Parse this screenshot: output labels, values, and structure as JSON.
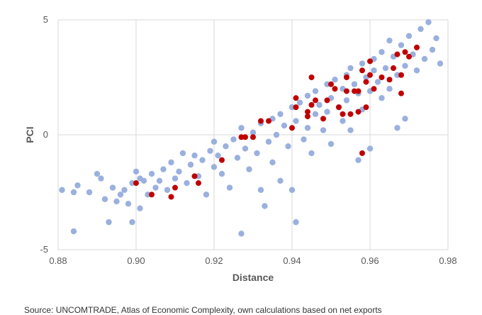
{
  "chart_data": {
    "type": "scatter",
    "title": "",
    "xlabel": "Distance",
    "ylabel": "PCI",
    "xlim": [
      0.88,
      0.98
    ],
    "ylim": [
      -5,
      5
    ],
    "x_ticks": [
      "0.88",
      "0.90",
      "0.92",
      "0.94",
      "0.96",
      "0.98"
    ],
    "y_ticks": [
      "5",
      "0",
      "-5"
    ],
    "grid": "vertical and horizontal major gridlines",
    "colors": {
      "main": "#9AB0DE",
      "highlight": "#C00000"
    },
    "series": [
      {
        "color": "#9AB0DE",
        "points": [
          [
            0.881,
            -2.4
          ],
          [
            0.884,
            -2.5
          ],
          [
            0.884,
            -4.2
          ],
          [
            0.885,
            -2.2
          ],
          [
            0.888,
            -2.5
          ],
          [
            0.89,
            -1.7
          ],
          [
            0.891,
            -1.9
          ],
          [
            0.892,
            -2.8
          ],
          [
            0.893,
            -3.8
          ],
          [
            0.894,
            -2.3
          ],
          [
            0.895,
            -2.9
          ],
          [
            0.896,
            -2.6
          ],
          [
            0.897,
            -2.4
          ],
          [
            0.898,
            -3.0
          ],
          [
            0.899,
            -3.8
          ],
          [
            0.899,
            -2.1
          ],
          [
            0.9,
            -1.6
          ],
          [
            0.901,
            -1.9
          ],
          [
            0.901,
            -3.2
          ],
          [
            0.902,
            -2.0
          ],
          [
            0.903,
            -2.6
          ],
          [
            0.904,
            -1.7
          ],
          [
            0.905,
            -2.3
          ],
          [
            0.906,
            -2.0
          ],
          [
            0.907,
            -1.5
          ],
          [
            0.908,
            -2.4
          ],
          [
            0.909,
            -1.2
          ],
          [
            0.91,
            -1.9
          ],
          [
            0.911,
            -1.6
          ],
          [
            0.912,
            -0.8
          ],
          [
            0.913,
            -2.1
          ],
          [
            0.914,
            -1.3
          ],
          [
            0.915,
            -0.9
          ],
          [
            0.916,
            -1.8
          ],
          [
            0.917,
            -1.1
          ],
          [
            0.918,
            -2.6
          ],
          [
            0.919,
            -0.7
          ],
          [
            0.92,
            -1.4
          ],
          [
            0.92,
            -0.3
          ],
          [
            0.921,
            -0.9
          ],
          [
            0.922,
            -1.7
          ],
          [
            0.923,
            -0.5
          ],
          [
            0.924,
            -2.3
          ],
          [
            0.925,
            -0.2
          ],
          [
            0.926,
            -1.0
          ],
          [
            0.927,
            0.3
          ],
          [
            0.927,
            -4.3
          ],
          [
            0.928,
            -0.6
          ],
          [
            0.929,
            -1.5
          ],
          [
            0.93,
            0.1
          ],
          [
            0.931,
            -0.8
          ],
          [
            0.932,
            0.5
          ],
          [
            0.932,
            -2.4
          ],
          [
            0.933,
            -3.1
          ],
          [
            0.934,
            -0.3
          ],
          [
            0.935,
            0.7
          ],
          [
            0.935,
            -1.2
          ],
          [
            0.936,
            0.0
          ],
          [
            0.937,
            0.9
          ],
          [
            0.937,
            -2.0
          ],
          [
            0.938,
            0.4
          ],
          [
            0.939,
            -0.5
          ],
          [
            0.94,
            1.2
          ],
          [
            0.94,
            -2.4
          ],
          [
            0.941,
            -3.8
          ],
          [
            0.941,
            0.6
          ],
          [
            0.942,
            1.4
          ],
          [
            0.943,
            -0.2
          ],
          [
            0.944,
            1.7
          ],
          [
            0.944,
            0.3
          ],
          [
            0.945,
            -0.8
          ],
          [
            0.946,
            1.9
          ],
          [
            0.946,
            0.9
          ],
          [
            0.947,
            1.3
          ],
          [
            0.948,
            0.2
          ],
          [
            0.949,
            2.2
          ],
          [
            0.949,
            1.0
          ],
          [
            0.95,
            1.6
          ],
          [
            0.95,
            -0.4
          ],
          [
            0.951,
            2.4
          ],
          [
            0.952,
            1.2
          ],
          [
            0.953,
            2.0
          ],
          [
            0.953,
            0.6
          ],
          [
            0.954,
            2.6
          ],
          [
            0.954,
            1.5
          ],
          [
            0.955,
            2.9
          ],
          [
            0.955,
            0.2
          ],
          [
            0.956,
            2.2
          ],
          [
            0.957,
            1.8
          ],
          [
            0.957,
            -1.1
          ],
          [
            0.958,
            3.1
          ],
          [
            0.958,
            1.1
          ],
          [
            0.959,
            2.5
          ],
          [
            0.96,
            1.9
          ],
          [
            0.96,
            -0.6
          ],
          [
            0.961,
            3.3
          ],
          [
            0.961,
            2.8
          ],
          [
            0.962,
            2.3
          ],
          [
            0.963,
            3.6
          ],
          [
            0.963,
            1.6
          ],
          [
            0.964,
            2.9
          ],
          [
            0.965,
            4.1
          ],
          [
            0.965,
            2.0
          ],
          [
            0.966,
            3.4
          ],
          [
            0.967,
            2.6
          ],
          [
            0.967,
            0.3
          ],
          [
            0.968,
            3.9
          ],
          [
            0.969,
            3.0
          ],
          [
            0.969,
            0.7
          ],
          [
            0.97,
            4.3
          ],
          [
            0.971,
            3.5
          ],
          [
            0.972,
            2.8
          ],
          [
            0.973,
            4.6
          ],
          [
            0.974,
            3.3
          ],
          [
            0.975,
            4.9
          ],
          [
            0.976,
            3.7
          ],
          [
            0.977,
            4.2
          ],
          [
            0.978,
            3.1
          ]
        ]
      },
      {
        "color": "#C00000",
        "points": [
          [
            0.9,
            -2.1
          ],
          [
            0.904,
            -2.6
          ],
          [
            0.909,
            -2.7
          ],
          [
            0.91,
            -2.3
          ],
          [
            0.915,
            -1.8
          ],
          [
            0.916,
            -2.1
          ],
          [
            0.922,
            -1.1
          ],
          [
            0.927,
            -0.1
          ],
          [
            0.928,
            -0.1
          ],
          [
            0.93,
            -0.1
          ],
          [
            0.932,
            0.6
          ],
          [
            0.934,
            0.6
          ],
          [
            0.94,
            0.3
          ],
          [
            0.941,
            1.2
          ],
          [
            0.941,
            1.6
          ],
          [
            0.944,
            0.8
          ],
          [
            0.944,
            1.0
          ],
          [
            0.945,
            1.3
          ],
          [
            0.945,
            2.5
          ],
          [
            0.946,
            1.5
          ],
          [
            0.948,
            0.7
          ],
          [
            0.949,
            1.5
          ],
          [
            0.95,
            2.2
          ],
          [
            0.951,
            2.0
          ],
          [
            0.952,
            1.2
          ],
          [
            0.953,
            0.9
          ],
          [
            0.954,
            2.5
          ],
          [
            0.954,
            1.9
          ],
          [
            0.955,
            0.9
          ],
          [
            0.956,
            1.9
          ],
          [
            0.957,
            1.9
          ],
          [
            0.957,
            1.0
          ],
          [
            0.958,
            2.8
          ],
          [
            0.958,
            -0.8
          ],
          [
            0.959,
            2.3
          ],
          [
            0.959,
            1.2
          ],
          [
            0.96,
            3.2
          ],
          [
            0.96,
            2.6
          ],
          [
            0.961,
            2.0
          ],
          [
            0.963,
            2.5
          ],
          [
            0.965,
            2.4
          ],
          [
            0.966,
            2.9
          ],
          [
            0.967,
            3.5
          ],
          [
            0.968,
            2.6
          ],
          [
            0.968,
            1.8
          ],
          [
            0.969,
            3.6
          ],
          [
            0.97,
            3.4
          ],
          [
            0.972,
            3.8
          ]
        ]
      }
    ]
  },
  "source_note": "Source: UNCOMTRADE, Atlas of Economic Complexity, own calculations based on net exports"
}
